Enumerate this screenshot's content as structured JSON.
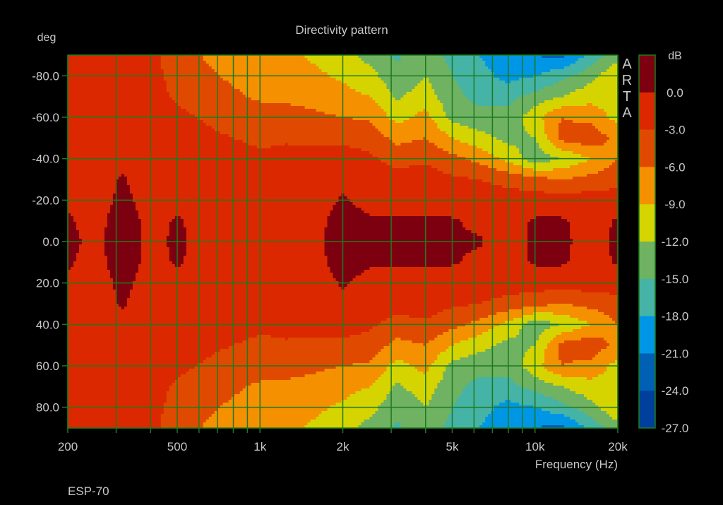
{
  "chart_data": {
    "type": "heatmap",
    "title": "Directivity pattern",
    "xlabel": "Frequency (Hz)",
    "ylabel": "deg",
    "colorbar_label": "dB",
    "watermark": "ARTA",
    "footer": "ESP-70",
    "x_scale": "log",
    "xlim": [
      200,
      20000
    ],
    "ylim": [
      -90,
      90
    ],
    "x_ticks": [
      200,
      500,
      1000,
      2000,
      5000,
      10000,
      20000
    ],
    "x_tick_labels": [
      "200",
      "500",
      "1k",
      "2k",
      "5k",
      "10k",
      "20k"
    ],
    "x_gridlines": [
      200,
      300,
      400,
      500,
      600,
      700,
      800,
      900,
      1000,
      2000,
      3000,
      4000,
      5000,
      6000,
      7000,
      8000,
      9000,
      10000,
      20000
    ],
    "y_ticks": [
      -80,
      -60,
      -40,
      -20,
      0,
      20,
      40,
      60,
      80
    ],
    "y_tick_labels": [
      "-80.0",
      "-60.0",
      "-40.0",
      "-20.0",
      "0.0",
      "20.0",
      "40.0",
      "60.0",
      "80.0"
    ],
    "grid": true,
    "grid_color": "#1e7a1e",
    "colorbar": {
      "levels": [
        3,
        0,
        -3,
        -6,
        -9,
        -12,
        -15,
        -18,
        -21,
        -24,
        -27
      ],
      "tick_labels": [
        "0.0",
        "-3.0",
        "-6.0",
        "-9.0",
        "-12.0",
        "-15.0",
        "-18.0",
        "-21.0",
        "-24.0",
        "-27.0"
      ],
      "colors": [
        "#7c0010",
        "#dc2800",
        "#e04a00",
        "#f59000",
        "#d6d400",
        "#6fb262",
        "#45b3a6",
        "#0096e6",
        "#0060b4",
        "#00409c"
      ]
    },
    "symmetric_about_zero_deg": true,
    "angles_deg": [
      0,
      10,
      20,
      30,
      40,
      50,
      60,
      70,
      80,
      90
    ],
    "frequencies_hz": [
      200,
      250,
      315,
      400,
      500,
      630,
      800,
      1000,
      1250,
      1600,
      2000,
      2500,
      3150,
      4000,
      5000,
      6300,
      8000,
      10000,
      12500,
      16000,
      20000
    ],
    "values_db": [
      [
        0.5,
        0.3,
        -0.5,
        -1,
        -1,
        -1,
        -1.2,
        -1.5,
        -2,
        -2
      ],
      [
        -0.5,
        -0.8,
        -1,
        -1,
        -1,
        -1,
        -1.5,
        -2,
        -2,
        -2
      ],
      [
        1,
        1,
        0.5,
        0.2,
        -0.5,
        -1,
        -1.5,
        -2,
        -2,
        -2.5
      ],
      [
        -0.5,
        -0.6,
        -0.8,
        -1,
        -1,
        -1.5,
        -2,
        -2.5,
        -2.5,
        -2.5
      ],
      [
        0.3,
        0.2,
        -0.5,
        -1,
        -1.5,
        -2,
        -2.5,
        -3.2,
        -3.5,
        -4
      ],
      [
        -0.5,
        -0.7,
        -1,
        -1.5,
        -2,
        -2.5,
        -3.2,
        -4.5,
        -5.5,
        -6.2
      ],
      [
        -0.5,
        -0.7,
        -1,
        -1.5,
        -2,
        -3,
        -4,
        -5.5,
        -6.5,
        -7.5
      ],
      [
        -0.8,
        -1,
        -1.2,
        -1.5,
        -2.5,
        -3.5,
        -4.5,
        -6.5,
        -7.5,
        -8
      ],
      [
        -0.6,
        -0.8,
        -1,
        -1.5,
        -2.5,
        -3.2,
        -5,
        -6.5,
        -7.5,
        -8.5
      ],
      [
        -0.3,
        -0.4,
        -0.8,
        -1.5,
        -2.2,
        -3.5,
        -5.5,
        -7,
        -8.5,
        -9.5
      ],
      [
        0.8,
        0.6,
        0.2,
        -0.5,
        -2,
        -3.5,
        -6,
        -8,
        -9.5,
        -11
      ],
      [
        0.3,
        0.2,
        -0.5,
        -1.2,
        -2.5,
        -4,
        -6.5,
        -9,
        -11,
        -13
      ],
      [
        0.3,
        0.1,
        -0.5,
        -2,
        -4,
        -7,
        -10,
        -12.5,
        -14,
        -15.5
      ],
      [
        0.3,
        0.2,
        -0.5,
        -1.5,
        -3.5,
        -6,
        -8,
        -10.5,
        -12,
        -13
      ],
      [
        0.3,
        0.2,
        -1,
        -2.5,
        -5,
        -9,
        -13,
        -14,
        -15,
        -16
      ],
      [
        0.2,
        -0.5,
        -1.5,
        -3,
        -7,
        -11,
        -14,
        -16,
        -17,
        -18
      ],
      [
        -1,
        -1,
        -1.5,
        -4,
        -10,
        -13,
        -14,
        -16,
        -19,
        -20
      ],
      [
        0.5,
        0.3,
        -1.5,
        -5,
        -14,
        -12,
        -10,
        -14,
        -18,
        -21
      ],
      [
        0.5,
        0.3,
        -1.5,
        -6,
        -12,
        -5,
        -6,
        -12,
        -16,
        -22
      ],
      [
        -1,
        -1,
        -1.5,
        -5,
        -9,
        -4,
        -7,
        -10,
        -13,
        -17
      ],
      [
        0.5,
        0.3,
        -1.5,
        -4,
        -6,
        -7,
        -10,
        -11,
        -9.5,
        -13
      ]
    ]
  }
}
